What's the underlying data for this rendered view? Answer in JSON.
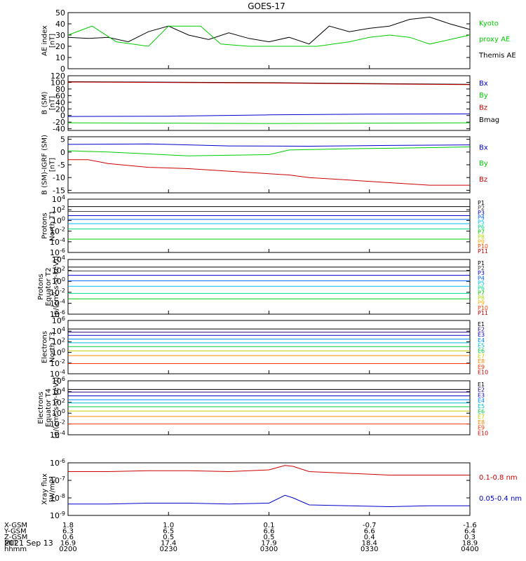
{
  "title": "GOES-17",
  "date_label": "2021 Sep 13",
  "chart_data": [
    {
      "type": "line",
      "ylabel": [
        "AE index",
        "[nT]"
      ],
      "ylim": [
        0,
        50
      ],
      "yscale": "linear",
      "yticks": [
        0,
        10,
        20,
        30,
        40,
        50
      ],
      "legend": [
        {
          "name": "Kyoto",
          "color": "#00cc00"
        },
        {
          "name": "proxy AE",
          "color": "#00cc00"
        },
        {
          "name": "Themis AE",
          "color": "#000000"
        }
      ],
      "series": [
        {
          "name": "Themis AE",
          "color": "#000000",
          "x": [
            0,
            0.05,
            0.1,
            0.15,
            0.2,
            0.25,
            0.3,
            0.35,
            0.4,
            0.45,
            0.5,
            0.55,
            0.6,
            0.65,
            0.7,
            0.75,
            0.8,
            0.85,
            0.9,
            0.95,
            1
          ],
          "y": [
            28,
            27,
            28,
            24,
            33,
            38,
            30,
            26,
            32,
            27,
            24,
            28,
            22,
            38,
            33,
            36,
            38,
            44,
            46,
            40,
            35
          ]
        },
        {
          "name": "Kyoto proxy AE",
          "color": "#00cc00",
          "x": [
            0,
            0.06,
            0.12,
            0.2,
            0.25,
            0.33,
            0.38,
            0.45,
            0.55,
            0.62,
            0.7,
            0.75,
            0.8,
            0.85,
            0.9,
            0.95,
            1
          ],
          "y": [
            30,
            38,
            24,
            20,
            38,
            38,
            22,
            20,
            20,
            20,
            24,
            28,
            30,
            28,
            22,
            26,
            30
          ]
        }
      ]
    },
    {
      "type": "line",
      "ylabel": [
        "B (SM)",
        "[nT]"
      ],
      "ylim": [
        -45,
        120
      ],
      "yscale": "linear",
      "yticks": [
        -40,
        -20,
        0,
        20,
        40,
        60,
        80,
        100,
        120
      ],
      "legend": [
        {
          "name": "Bx",
          "color": "#0000cc"
        },
        {
          "name": "By",
          "color": "#00cc00"
        },
        {
          "name": "Bz",
          "color": "#cc0000"
        },
        {
          "name": "Bmag",
          "color": "#000000"
        }
      ],
      "series": [
        {
          "name": "Bmag",
          "color": "#000000",
          "x": [
            0,
            0.5,
            1
          ],
          "y": [
            102,
            99,
            94
          ]
        },
        {
          "name": "Bz",
          "color": "#cc0000",
          "x": [
            0,
            0.5,
            1
          ],
          "y": [
            101,
            98,
            93
          ]
        },
        {
          "name": "Bx",
          "color": "#0000cc",
          "x": [
            0,
            0.25,
            0.5,
            0.75,
            1
          ],
          "y": [
            -3,
            -2,
            2,
            4,
            5
          ]
        },
        {
          "name": "By",
          "color": "#00cc00",
          "x": [
            0,
            0.25,
            0.5,
            0.75,
            1
          ],
          "y": [
            -22,
            -23,
            -24,
            -23,
            -22
          ]
        }
      ]
    },
    {
      "type": "line",
      "ylabel": [
        "B (SM)-IGRF (SM)",
        "[nT]"
      ],
      "ylim": [
        -16,
        6
      ],
      "yscale": "linear",
      "yticks": [
        -15,
        -10,
        -5,
        0,
        5
      ],
      "legend": [
        {
          "name": "Bx",
          "color": "#0000cc"
        },
        {
          "name": "By",
          "color": "#00cc00"
        },
        {
          "name": "Bz",
          "color": "#cc0000"
        }
      ],
      "series": [
        {
          "name": "Bx",
          "color": "#0000cc",
          "x": [
            0,
            0.2,
            0.4,
            0.6,
            0.8,
            1
          ],
          "y": [
            3,
            3.2,
            2.4,
            2.3,
            2.6,
            2.8
          ]
        },
        {
          "name": "By",
          "color": "#00cc00",
          "x": [
            0,
            0.1,
            0.3,
            0.5,
            0.55,
            0.7,
            0.85,
            1
          ],
          "y": [
            0.5,
            0,
            -1.5,
            -1,
            0.8,
            1.3,
            1.6,
            2
          ]
        },
        {
          "name": "Bz",
          "color": "#cc0000",
          "x": [
            0,
            0.05,
            0.1,
            0.2,
            0.3,
            0.4,
            0.5,
            0.55,
            0.6,
            0.7,
            0.8,
            0.9,
            1
          ],
          "y": [
            -3,
            -3,
            -4.5,
            -6,
            -6.5,
            -7.5,
            -8.5,
            -9,
            -10,
            -11,
            -12,
            -13,
            -13
          ]
        }
      ]
    },
    {
      "type": "line",
      "ylabel": [
        "Protons",
        "North T1"
      ],
      "ylim_log10": [
        -6,
        4
      ],
      "yscale": "log",
      "yticks": [
        "10^4",
        "10^2",
        "10^0",
        "10^-2",
        "10^-4",
        "10^-6"
      ],
      "channels": [
        "P1",
        "P2",
        "P3",
        "P4",
        "P5",
        "P6",
        "P7",
        "P8",
        "P9",
        "P10",
        "P11"
      ],
      "channel_colors": [
        "#000000",
        "#444444",
        "#0000cc",
        "#0066ff",
        "#00bbee",
        "#00dd88",
        "#00cc00",
        "#aadd00",
        "#ffaa00",
        "#ff4400",
        "#cc0000"
      ],
      "series_log10": [
        2.6,
        1.7,
        0.9,
        0.2,
        -0.6,
        -1.6,
        -3.5
      ]
    },
    {
      "type": "line",
      "ylabel": [
        "Protons",
        "Equator T2",
        "[p/(cm²-s-sr-keV)]"
      ],
      "ylim_log10": [
        -6,
        4
      ],
      "yscale": "log",
      "yticks": [
        "10^4",
        "10^2",
        "10^0",
        "10^-2",
        "10^-4",
        "10^-6"
      ],
      "channels": [
        "P1",
        "P2",
        "P3",
        "P4",
        "P5",
        "P6",
        "P7",
        "P8",
        "P9",
        "P10",
        "P11"
      ],
      "channel_colors": [
        "#000000",
        "#444444",
        "#0000cc",
        "#0066ff",
        "#00bbee",
        "#00dd88",
        "#00cc00",
        "#aadd00",
        "#ffaa00",
        "#ff4400",
        "#cc0000"
      ],
      "series_log10": [
        2.6,
        1.9,
        1.1,
        0.1,
        -0.9,
        -2.2,
        -3.2
      ]
    },
    {
      "type": "line",
      "ylabel": [
        "Electrons",
        "North T3"
      ],
      "ylim_log10": [
        -4,
        6
      ],
      "yscale": "log",
      "yticks": [
        "10^6",
        "10^4",
        "10^2",
        "10^0",
        "10^-2",
        "10^-4"
      ],
      "channels": [
        "E1",
        "E2",
        "E3",
        "E4",
        "E5",
        "E6",
        "E7",
        "E8",
        "E9",
        "E10"
      ],
      "channel_colors": [
        "#000000",
        "#220088",
        "#0000cc",
        "#0088ff",
        "#00bbcc",
        "#00cc44",
        "#cccc00",
        "#ff8800",
        "#ff3300",
        "#cc0000"
      ],
      "series_log10": [
        4.4,
        3.8,
        3.2,
        2.5,
        1.8,
        1.1,
        0.3,
        -0.6,
        -2.1
      ]
    },
    {
      "type": "line",
      "ylabel": [
        "Electrons",
        "Equator T4",
        "[e/(cm²-s-sr-keV)]"
      ],
      "ylim_log10": [
        -4,
        6
      ],
      "yscale": "log",
      "yticks": [
        "10^6",
        "10^4",
        "10^2",
        "10^0",
        "10^-2",
        "10^-4"
      ],
      "channels": [
        "E1",
        "E2",
        "E3",
        "E4",
        "E5",
        "E6",
        "E7",
        "E8",
        "E9",
        "E10"
      ],
      "channel_colors": [
        "#000000",
        "#220088",
        "#0000cc",
        "#0088ff",
        "#00bbcc",
        "#00cc44",
        "#cccc00",
        "#ff8800",
        "#ff3300",
        "#cc0000"
      ],
      "series_log10": [
        4.4,
        3.9,
        3.2,
        2.5,
        1.9,
        1.2,
        0.4,
        -0.6,
        -2.0
      ]
    },
    {
      "type": "line",
      "ylabel": [
        "Xray flux",
        "[W/m2]"
      ],
      "ylim_log10": [
        -9,
        -6
      ],
      "yscale": "log",
      "yticks": [
        "10^-6",
        "10^-7",
        "10^-8",
        "10^-9"
      ],
      "legend": [
        {
          "name": "0.1-0.8 nm",
          "color": "#cc0000"
        },
        {
          "name": "0.05-0.4 nm",
          "color": "#0000cc"
        }
      ],
      "series": [
        {
          "name": "0.1-0.8 nm",
          "color": "#cc0000",
          "x": [
            0,
            0.1,
            0.2,
            0.3,
            0.4,
            0.5,
            0.54,
            0.56,
            0.6,
            0.7,
            0.8,
            0.9,
            1
          ],
          "y_log10": [
            -6.5,
            -6.5,
            -6.45,
            -6.45,
            -6.5,
            -6.4,
            -6.15,
            -6.2,
            -6.5,
            -6.6,
            -6.7,
            -6.7,
            -6.7
          ]
        },
        {
          "name": "0.05-0.4 nm",
          "color": "#0000cc",
          "x": [
            0,
            0.1,
            0.2,
            0.3,
            0.4,
            0.5,
            0.54,
            0.56,
            0.6,
            0.7,
            0.8,
            0.9,
            1
          ],
          "y_log10": [
            -8.35,
            -8.35,
            -8.3,
            -8.3,
            -8.35,
            -8.3,
            -7.85,
            -8.0,
            -8.4,
            -8.45,
            -8.5,
            -8.45,
            -8.45
          ]
        }
      ]
    }
  ],
  "orbit_table": {
    "row_labels": [
      "X-GSM",
      "Y-GSM",
      "Z-GSM",
      "MLT",
      "hhmm"
    ],
    "columns": [
      [
        "1.8",
        "6.3",
        "0.6",
        "16.9",
        "0200"
      ],
      [
        "1.0",
        "6.5",
        "0.5",
        "17.4",
        "0230"
      ],
      [
        "0.1",
        "6.6",
        "0.5",
        "17.9",
        "0300"
      ],
      [
        "-0.7",
        "6.6",
        "0.4",
        "18.4",
        "0330"
      ],
      [
        "-1.6",
        "6.4",
        "0.3",
        "18.9",
        "0400"
      ]
    ]
  }
}
